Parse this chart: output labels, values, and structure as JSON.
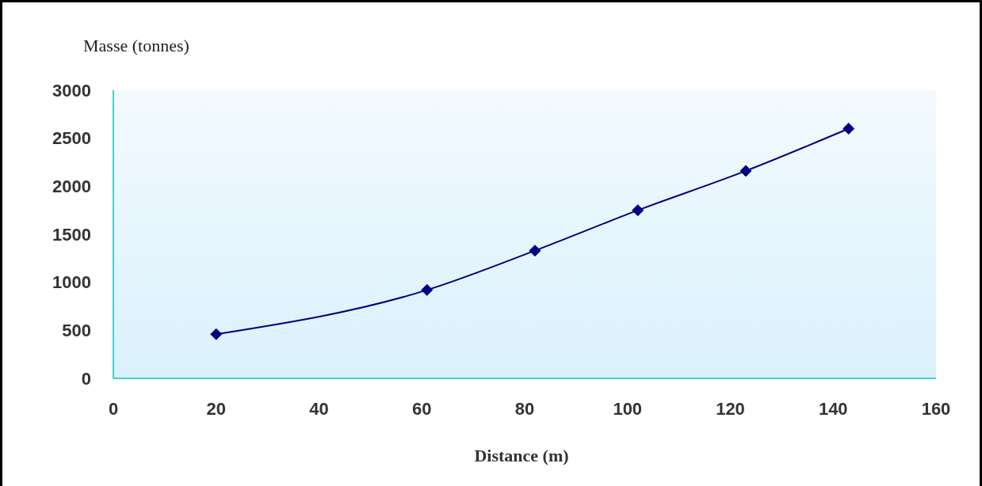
{
  "chart_data": {
    "type": "line",
    "ylabel": "Masse (tonnes)",
    "xlabel": "Distance (m)",
    "x": [
      20,
      61,
      82,
      102,
      123,
      143
    ],
    "series": [
      {
        "color": "#000080",
        "values": [
          460,
          920,
          1330,
          1750,
          2160,
          2600
        ]
      }
    ],
    "xlim": [
      0,
      160
    ],
    "xticks": [
      0,
      20,
      40,
      60,
      80,
      100,
      120,
      140,
      160
    ],
    "ylim": [
      0,
      3000
    ],
    "yticks": [
      0,
      500,
      1000,
      1500,
      2000,
      2500,
      3000
    ],
    "marker": "diamond",
    "line_style": "solid",
    "grid": false,
    "legend": false
  }
}
